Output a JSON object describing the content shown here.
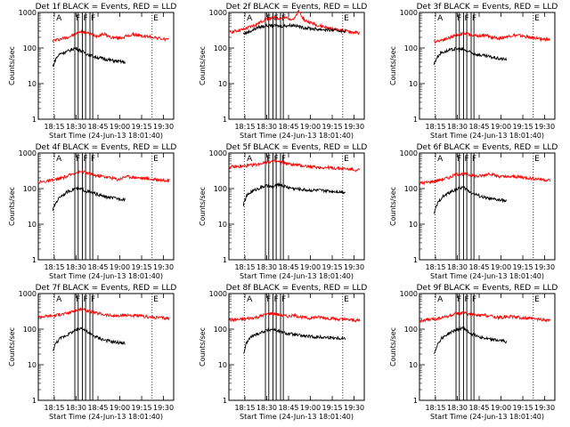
{
  "shared": {
    "ylabel": "Counts/sec",
    "xlabel": "Start Time (24-Jun-13 18:01:40)",
    "x_ticks": [
      "18:15",
      "18:30",
      "18:45",
      "19:00",
      "19:15",
      "19:30"
    ],
    "y_ticks": [
      "1",
      "10",
      "100",
      "1000"
    ],
    "marker_letters": {
      "attenuator": "A",
      "front": "F",
      "end": "E"
    },
    "colors": {
      "events": "#000000",
      "lld": "#ff0000"
    }
  },
  "chart_data": [
    {
      "type": "line",
      "title": "Det 1f BLACK = Events, RED = LLD",
      "xlim": [
        "18:04",
        "19:38"
      ],
      "ylim": [
        1,
        1000
      ],
      "yscale": "log",
      "x_range_minutes": [
        0,
        93
      ],
      "markers": {
        "A": 18.4,
        "F": [
          25.1,
          30.3,
          35.5
        ],
        "E": 77.8
      },
      "solid_lines": [
        25.1,
        27.4,
        30.3,
        32.5,
        35.5,
        37.4
      ],
      "dotted_lines": [
        10.6,
        78.2
      ],
      "series": [
        {
          "name": "LLD",
          "color": "#ff0000",
          "x_min": [
            10,
            20,
            25,
            28,
            33,
            37,
            40,
            45,
            50,
            55,
            60,
            65,
            70,
            75,
            80,
            85,
            90
          ],
          "y": [
            160,
            200,
            240,
            290,
            270,
            240,
            220,
            250,
            200,
            190,
            210,
            240,
            220,
            210,
            200,
            180,
            170
          ]
        },
        {
          "name": "Events",
          "color": "#000000",
          "x_min": [
            10,
            12,
            15,
            20,
            25,
            28,
            33,
            37,
            40,
            45,
            50,
            55,
            60
          ],
          "y": [
            30,
            50,
            70,
            80,
            100,
            90,
            70,
            60,
            55,
            50,
            45,
            42,
            40
          ]
        }
      ]
    },
    {
      "type": "line",
      "title": "Det 2f BLACK = Events, RED = LLD",
      "xlim": [
        "18:04",
        "19:38"
      ],
      "ylim": [
        1,
        1000
      ],
      "yscale": "log",
      "x_range_minutes": [
        0,
        93
      ],
      "markers": {
        "A": 18.4,
        "F": [
          25.1,
          30.3,
          35.5
        ],
        "E": 77.8
      },
      "solid_lines": [
        25.1,
        27.4,
        30.3,
        32.5,
        35.5,
        37.4
      ],
      "dotted_lines": [
        10.6,
        78.2
      ],
      "series": [
        {
          "name": "LLD",
          "color": "#ff0000",
          "x_min": [
            0,
            10,
            20,
            25,
            30,
            35,
            40,
            45,
            48,
            52,
            60,
            70,
            80,
            90
          ],
          "y": [
            280,
            330,
            480,
            650,
            700,
            680,
            700,
            650,
            1100,
            600,
            450,
            350,
            300,
            260
          ]
        },
        {
          "name": "Events",
          "color": "#000000",
          "x_min": [
            10,
            15,
            20,
            25,
            30,
            35,
            40,
            45,
            50,
            55,
            60,
            70,
            80
          ],
          "y": [
            250,
            300,
            380,
            420,
            430,
            410,
            430,
            440,
            380,
            360,
            340,
            320,
            300
          ]
        }
      ]
    },
    {
      "type": "line",
      "title": "Det 3f BLACK = Events, RED = LLD",
      "xlim": [
        "18:04",
        "19:38"
      ],
      "ylim": [
        1,
        1000
      ],
      "yscale": "log",
      "x_range_minutes": [
        0,
        93
      ],
      "markers": {
        "A": 18.4,
        "F": [
          25.1,
          30.3,
          35.5
        ],
        "E": 77.8
      },
      "solid_lines": [
        25.1,
        27.4,
        30.3,
        32.5,
        35.5,
        37.4
      ],
      "dotted_lines": [
        10.6,
        78.2
      ],
      "series": [
        {
          "name": "LLD",
          "color": "#ff0000",
          "x_min": [
            10,
            20,
            25,
            30,
            35,
            40,
            45,
            50,
            55,
            60,
            65,
            70,
            75,
            80,
            85,
            90
          ],
          "y": [
            150,
            190,
            230,
            260,
            240,
            220,
            230,
            200,
            190,
            210,
            230,
            220,
            200,
            190,
            180,
            170
          ]
        },
        {
          "name": "Events",
          "color": "#000000",
          "x_min": [
            10,
            12,
            15,
            20,
            25,
            30,
            35,
            40,
            45,
            50,
            55,
            60
          ],
          "y": [
            35,
            55,
            75,
            85,
            95,
            90,
            75,
            65,
            60,
            55,
            50,
            48
          ]
        }
      ]
    },
    {
      "type": "line",
      "title": "Det 4f BLACK = Events, RED = LLD",
      "xlim": [
        "18:04",
        "19:38"
      ],
      "ylim": [
        1,
        1000
      ],
      "yscale": "log",
      "x_range_minutes": [
        0,
        93
      ],
      "markers": {
        "A": 18.4,
        "F": [
          25.1,
          30.3,
          35.5
        ],
        "E": 77.8
      },
      "solid_lines": [
        25.1,
        27.4,
        30.3,
        32.5,
        35.5,
        37.4
      ],
      "dotted_lines": [
        10.6,
        78.2
      ],
      "series": [
        {
          "name": "LLD",
          "color": "#ff0000",
          "x_min": [
            0,
            10,
            20,
            25,
            30,
            35,
            40,
            45,
            50,
            55,
            60,
            65,
            70,
            75,
            80,
            85,
            90
          ],
          "y": [
            150,
            170,
            220,
            280,
            300,
            260,
            230,
            220,
            200,
            180,
            220,
            210,
            200,
            190,
            180,
            175,
            170
          ]
        },
        {
          "name": "Events",
          "color": "#000000",
          "x_min": [
            10,
            12,
            15,
            20,
            25,
            30,
            35,
            40,
            45,
            50,
            55,
            60
          ],
          "y": [
            25,
            40,
            60,
            80,
            100,
            95,
            80,
            70,
            60,
            55,
            52,
            50
          ]
        }
      ]
    },
    {
      "type": "line",
      "title": "Det 5f BLACK = Events, RED = LLD",
      "xlim": [
        "18:04",
        "19:38"
      ],
      "ylim": [
        1,
        1000
      ],
      "yscale": "log",
      "x_range_minutes": [
        0,
        93
      ],
      "markers": {
        "A": 18.4,
        "F": [
          25.1,
          30.3,
          35.5
        ],
        "E": 77.8
      },
      "solid_lines": [
        25.1,
        27.4,
        30.3,
        32.5,
        35.5,
        37.4
      ],
      "dotted_lines": [
        10.6,
        78.2
      ],
      "series": [
        {
          "name": "LLD",
          "color": "#ff0000",
          "x_min": [
            0,
            10,
            20,
            25,
            30,
            35,
            40,
            45,
            50,
            55,
            60,
            70,
            80,
            90
          ],
          "y": [
            400,
            420,
            480,
            550,
            580,
            560,
            500,
            470,
            440,
            420,
            400,
            380,
            360,
            330
          ]
        },
        {
          "name": "Events",
          "color": "#000000",
          "x_min": [
            10,
            12,
            15,
            20,
            25,
            30,
            35,
            40,
            45,
            50,
            55,
            60,
            70,
            80
          ],
          "y": [
            35,
            60,
            80,
            100,
            120,
            110,
            130,
            110,
            100,
            95,
            90,
            90,
            85,
            80
          ]
        }
      ]
    },
    {
      "type": "line",
      "title": "Det 6f BLACK = Events, RED = LLD",
      "xlim": [
        "18:04",
        "19:38"
      ],
      "ylim": [
        1,
        1000
      ],
      "yscale": "log",
      "x_range_minutes": [
        0,
        93
      ],
      "markers": {
        "A": 18.4,
        "F": [
          25.1,
          30.3,
          35.5
        ],
        "E": 77.8
      },
      "solid_lines": [
        25.1,
        27.4,
        30.3,
        32.5,
        35.5,
        37.4
      ],
      "dotted_lines": [
        10.6,
        78.2
      ],
      "series": [
        {
          "name": "LLD",
          "color": "#ff0000",
          "x_min": [
            0,
            10,
            20,
            25,
            30,
            35,
            40,
            45,
            48,
            52,
            60,
            65,
            70,
            75,
            80,
            85,
            90
          ],
          "y": [
            140,
            160,
            200,
            250,
            260,
            240,
            220,
            240,
            270,
            230,
            210,
            220,
            210,
            200,
            190,
            180,
            170
          ]
        },
        {
          "name": "Events",
          "color": "#000000",
          "x_min": [
            10,
            12,
            15,
            20,
            25,
            30,
            35,
            40,
            45,
            50,
            55,
            60
          ],
          "y": [
            20,
            35,
            55,
            75,
            95,
            110,
            80,
            65,
            55,
            50,
            48,
            45
          ]
        }
      ]
    },
    {
      "type": "line",
      "title": "Det 7f BLACK = Events, RED = LLD",
      "xlim": [
        "18:04",
        "19:38"
      ],
      "ylim": [
        1,
        1000
      ],
      "yscale": "log",
      "x_range_minutes": [
        0,
        93
      ],
      "markers": {
        "A": 18.4,
        "F": [
          25.1,
          30.3,
          35.5
        ],
        "E": 77.8
      },
      "solid_lines": [
        25.1,
        27.4,
        30.3,
        32.5,
        35.5,
        37.4
      ],
      "dotted_lines": [
        10.6,
        78.2
      ],
      "series": [
        {
          "name": "LLD",
          "color": "#ff0000",
          "x_min": [
            0,
            10,
            20,
            25,
            30,
            35,
            40,
            45,
            50,
            55,
            60,
            65,
            70,
            75,
            80,
            85,
            90
          ],
          "y": [
            220,
            240,
            280,
            330,
            360,
            320,
            280,
            260,
            240,
            230,
            250,
            240,
            230,
            220,
            215,
            210,
            200
          ]
        },
        {
          "name": "Events",
          "color": "#000000",
          "x_min": [
            10,
            12,
            15,
            20,
            25,
            30,
            35,
            40,
            45,
            50,
            55,
            60
          ],
          "y": [
            25,
            40,
            55,
            70,
            90,
            110,
            75,
            60,
            50,
            45,
            42,
            40
          ]
        }
      ]
    },
    {
      "type": "line",
      "title": "Det 8f BLACK = Events, RED = LLD",
      "xlim": [
        "18:04",
        "19:38"
      ],
      "ylim": [
        1,
        1000
      ],
      "yscale": "log",
      "x_range_minutes": [
        0,
        93
      ],
      "markers": {
        "A": 18.4,
        "F": [
          25.1,
          30.3,
          35.5
        ],
        "E": 77.8
      },
      "solid_lines": [
        25.1,
        27.4,
        30.3,
        32.5,
        35.5,
        37.4
      ],
      "dotted_lines": [
        10.6,
        78.2
      ],
      "series": [
        {
          "name": "LLD",
          "color": "#ff0000",
          "x_min": [
            0,
            10,
            20,
            25,
            30,
            35,
            40,
            45,
            50,
            55,
            60,
            65,
            70,
            75,
            80,
            85,
            90
          ],
          "y": [
            180,
            190,
            220,
            260,
            280,
            250,
            230,
            240,
            220,
            200,
            220,
            210,
            200,
            190,
            185,
            180,
            175
          ]
        },
        {
          "name": "Events",
          "color": "#000000",
          "x_min": [
            10,
            12,
            15,
            20,
            25,
            30,
            35,
            40,
            45,
            50,
            55,
            60,
            70,
            80
          ],
          "y": [
            20,
            40,
            60,
            75,
            90,
            100,
            85,
            75,
            70,
            65,
            62,
            60,
            58,
            55
          ]
        }
      ]
    },
    {
      "type": "line",
      "title": "Det 9f BLACK = Events, RED = LLD",
      "xlim": [
        "18:04",
        "19:38"
      ],
      "ylim": [
        1,
        1000
      ],
      "yscale": "log",
      "x_range_minutes": [
        0,
        93
      ],
      "markers": {
        "A": 18.4,
        "F": [
          25.1,
          30.3,
          35.5
        ],
        "E": 77.8
      },
      "solid_lines": [
        25.1,
        27.4,
        30.3,
        32.5,
        35.5,
        37.4
      ],
      "dotted_lines": [
        10.6,
        78.2
      ],
      "series": [
        {
          "name": "LLD",
          "color": "#ff0000",
          "x_min": [
            0,
            10,
            20,
            25,
            30,
            35,
            40,
            45,
            50,
            55,
            60,
            65,
            70,
            75,
            80,
            85,
            90
          ],
          "y": [
            170,
            190,
            230,
            270,
            290,
            260,
            240,
            250,
            230,
            210,
            230,
            220,
            210,
            200,
            190,
            185,
            180
          ]
        },
        {
          "name": "Events",
          "color": "#000000",
          "x_min": [
            10,
            12,
            15,
            20,
            25,
            30,
            35,
            40,
            45,
            50,
            55,
            60
          ],
          "y": [
            20,
            35,
            55,
            75,
            95,
            110,
            75,
            65,
            55,
            50,
            48,
            45
          ]
        }
      ]
    }
  ]
}
